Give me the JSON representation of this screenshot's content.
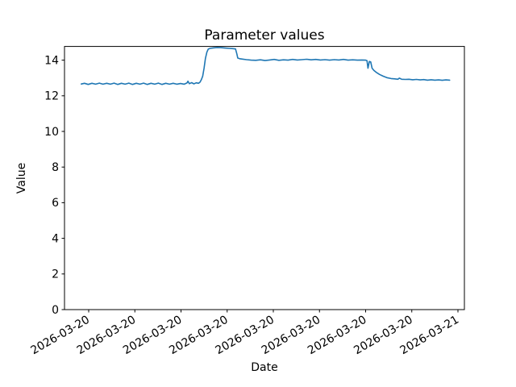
{
  "figure": {
    "background": "#ffffff",
    "text_color": "#000000",
    "spine_color": "#000000"
  },
  "chart_data": {
    "type": "line",
    "title": "Parameter values",
    "xlabel": "Date",
    "ylabel": "Value",
    "grid": false,
    "legend": null,
    "line_color": "#1f77b4",
    "line_width": 1.6,
    "ylim": [
      0,
      14.77
    ],
    "y_ticks": [
      0,
      2,
      4,
      6,
      8,
      10,
      12,
      14
    ],
    "x_tick_labels": [
      "2026-03-20",
      "2026-03-20",
      "2026-03-20",
      "2026-03-20",
      "2026-03-20",
      "2026-03-20",
      "2026-03-20",
      "2026-03-20",
      "2026-03-21"
    ],
    "x_tick_positions": [
      0,
      1,
      2,
      3,
      4,
      5,
      6,
      7,
      8
    ],
    "x_tick_label_rotation_deg": 30,
    "xlim": [
      -0.52,
      8.14
    ],
    "x_unit_note": "x in tick-interval units (one unit between labeled ticks)",
    "series": [
      {
        "name": "Parameter values",
        "color": "#1f77b4",
        "points": [
          [
            -0.16,
            12.66
          ],
          [
            -0.09,
            12.7
          ],
          [
            -0.01,
            12.64
          ],
          [
            0.07,
            12.7
          ],
          [
            0.15,
            12.65
          ],
          [
            0.23,
            12.71
          ],
          [
            0.31,
            12.65
          ],
          [
            0.39,
            12.7
          ],
          [
            0.47,
            12.65
          ],
          [
            0.55,
            12.71
          ],
          [
            0.63,
            12.64
          ],
          [
            0.71,
            12.7
          ],
          [
            0.79,
            12.65
          ],
          [
            0.87,
            12.71
          ],
          [
            0.95,
            12.64
          ],
          [
            1.03,
            12.7
          ],
          [
            1.11,
            12.65
          ],
          [
            1.19,
            12.71
          ],
          [
            1.27,
            12.64
          ],
          [
            1.35,
            12.7
          ],
          [
            1.43,
            12.65
          ],
          [
            1.51,
            12.71
          ],
          [
            1.59,
            12.64
          ],
          [
            1.67,
            12.7
          ],
          [
            1.75,
            12.65
          ],
          [
            1.83,
            12.7
          ],
          [
            1.91,
            12.65
          ],
          [
            1.99,
            12.69
          ],
          [
            2.07,
            12.65
          ],
          [
            2.13,
            12.72
          ],
          [
            2.15,
            12.82
          ],
          [
            2.18,
            12.68
          ],
          [
            2.23,
            12.74
          ],
          [
            2.28,
            12.67
          ],
          [
            2.33,
            12.73
          ],
          [
            2.38,
            12.7
          ],
          [
            2.41,
            12.76
          ],
          [
            2.44,
            12.9
          ],
          [
            2.47,
            13.1
          ],
          [
            2.5,
            13.55
          ],
          [
            2.53,
            14.1
          ],
          [
            2.56,
            14.45
          ],
          [
            2.59,
            14.62
          ],
          [
            2.63,
            14.66
          ],
          [
            2.7,
            14.69
          ],
          [
            2.78,
            14.71
          ],
          [
            2.86,
            14.7
          ],
          [
            2.95,
            14.68
          ],
          [
            3.04,
            14.66
          ],
          [
            3.12,
            14.65
          ],
          [
            3.18,
            14.63
          ],
          [
            3.21,
            14.35
          ],
          [
            3.23,
            14.12
          ],
          [
            3.27,
            14.08
          ],
          [
            3.33,
            14.06
          ],
          [
            3.42,
            14.03
          ],
          [
            3.52,
            14.0
          ],
          [
            3.62,
            13.99
          ],
          [
            3.72,
            14.02
          ],
          [
            3.82,
            13.98
          ],
          [
            3.92,
            14.01
          ],
          [
            4.02,
            14.04
          ],
          [
            4.12,
            13.99
          ],
          [
            4.22,
            14.02
          ],
          [
            4.32,
            14.0
          ],
          [
            4.42,
            14.04
          ],
          [
            4.52,
            14.01
          ],
          [
            4.62,
            14.03
          ],
          [
            4.72,
            14.05
          ],
          [
            4.82,
            14.02
          ],
          [
            4.92,
            14.04
          ],
          [
            5.02,
            14.01
          ],
          [
            5.12,
            14.03
          ],
          [
            5.22,
            14.0
          ],
          [
            5.32,
            14.03
          ],
          [
            5.42,
            14.01
          ],
          [
            5.52,
            14.04
          ],
          [
            5.62,
            14.0
          ],
          [
            5.72,
            14.02
          ],
          [
            5.82,
            14.0
          ],
          [
            5.92,
            14.01
          ],
          [
            6.0,
            14.0
          ],
          [
            6.03,
            13.97
          ],
          [
            6.05,
            13.55
          ],
          [
            6.08,
            13.93
          ],
          [
            6.11,
            13.9
          ],
          [
            6.14,
            13.55
          ],
          [
            6.18,
            13.42
          ],
          [
            6.24,
            13.3
          ],
          [
            6.3,
            13.2
          ],
          [
            6.38,
            13.1
          ],
          [
            6.46,
            13.02
          ],
          [
            6.55,
            12.97
          ],
          [
            6.63,
            12.95
          ],
          [
            6.7,
            12.93
          ],
          [
            6.73,
            12.99
          ],
          [
            6.78,
            12.93
          ],
          [
            6.86,
            12.92
          ],
          [
            6.94,
            12.93
          ],
          [
            7.02,
            12.9
          ],
          [
            7.1,
            12.92
          ],
          [
            7.18,
            12.89
          ],
          [
            7.26,
            12.91
          ],
          [
            7.34,
            12.88
          ],
          [
            7.42,
            12.9
          ],
          [
            7.5,
            12.88
          ],
          [
            7.58,
            12.89
          ],
          [
            7.66,
            12.87
          ],
          [
            7.74,
            12.89
          ],
          [
            7.82,
            12.88
          ]
        ]
      }
    ]
  }
}
